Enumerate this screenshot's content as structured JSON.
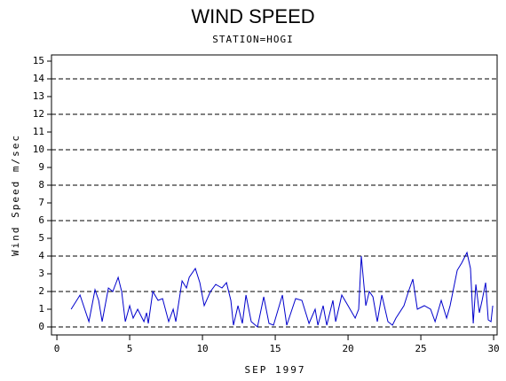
{
  "chart_data": {
    "type": "line",
    "title": "WIND SPEED",
    "subtitle": "STATION=HOGI",
    "x_label": "SEP 1997",
    "y_label": "Wind Speed m/sec",
    "xlim": [
      -0.37,
      30.24
    ],
    "ylim": [
      -0.45,
      15.35
    ],
    "xticks": [
      0,
      5,
      10,
      15,
      20,
      25,
      30
    ],
    "yticks": [
      0,
      1,
      2,
      3,
      4,
      5,
      6,
      7,
      8,
      9,
      10,
      11,
      12,
      13,
      14,
      15
    ],
    "grid_lines": [
      0,
      2,
      4,
      6,
      8,
      10,
      12,
      14
    ],
    "series": [
      {
        "color": "#0000cc",
        "x": [
          0.98,
          1.59,
          2.2,
          2.62,
          2.87,
          3.11,
          3.54,
          3.84,
          4.21,
          4.45,
          4.7,
          5.0,
          5.24,
          5.55,
          5.98,
          6.16,
          6.28,
          6.59,
          6.95,
          7.26,
          7.68,
          7.99,
          8.17,
          8.6,
          8.9,
          9.09,
          9.51,
          9.82,
          10.12,
          10.55,
          10.91,
          11.34,
          11.65,
          11.95,
          12.13,
          12.44,
          12.74,
          12.99,
          13.35,
          13.78,
          14.21,
          14.57,
          14.88,
          15.49,
          15.79,
          16.4,
          16.83,
          17.32,
          17.74,
          17.93,
          18.29,
          18.54,
          18.96,
          19.15,
          19.57,
          20.0,
          20.49,
          20.73,
          20.91,
          21.22,
          21.46,
          21.71,
          22.01,
          22.32,
          22.74,
          23.05,
          23.29,
          23.84,
          24.15,
          24.45,
          24.76,
          25.24,
          25.67,
          25.98,
          26.4,
          26.77,
          27.01,
          27.5,
          27.8,
          28.17,
          28.41,
          28.6,
          28.78,
          29.02,
          29.21,
          29.45,
          29.63,
          29.82,
          29.94
        ],
        "values": [
          1.0,
          1.8,
          0.3,
          2.1,
          1.5,
          0.3,
          2.2,
          2.0,
          2.8,
          2.0,
          0.3,
          1.2,
          0.5,
          1.0,
          0.3,
          0.8,
          0.2,
          2.0,
          1.5,
          1.6,
          0.3,
          1.0,
          0.3,
          2.6,
          2.2,
          2.8,
          3.3,
          2.5,
          1.2,
          2.0,
          2.4,
          2.2,
          2.5,
          1.5,
          0.1,
          1.2,
          0.2,
          1.8,
          0.3,
          0.0,
          1.7,
          0.2,
          0.1,
          1.8,
          0.1,
          1.6,
          1.5,
          0.2,
          1.0,
          0.1,
          1.2,
          0.1,
          1.5,
          0.3,
          1.8,
          1.2,
          0.5,
          1.0,
          4.0,
          1.2,
          2.0,
          1.7,
          0.3,
          1.8,
          0.3,
          0.1,
          0.5,
          1.2,
          2.0,
          2.7,
          1.0,
          1.2,
          1.0,
          0.3,
          1.5,
          0.5,
          1.2,
          3.2,
          3.6,
          4.2,
          3.3,
          0.2,
          2.4,
          0.8,
          1.5,
          2.5,
          0.4,
          0.3,
          1.2
        ]
      }
    ]
  }
}
